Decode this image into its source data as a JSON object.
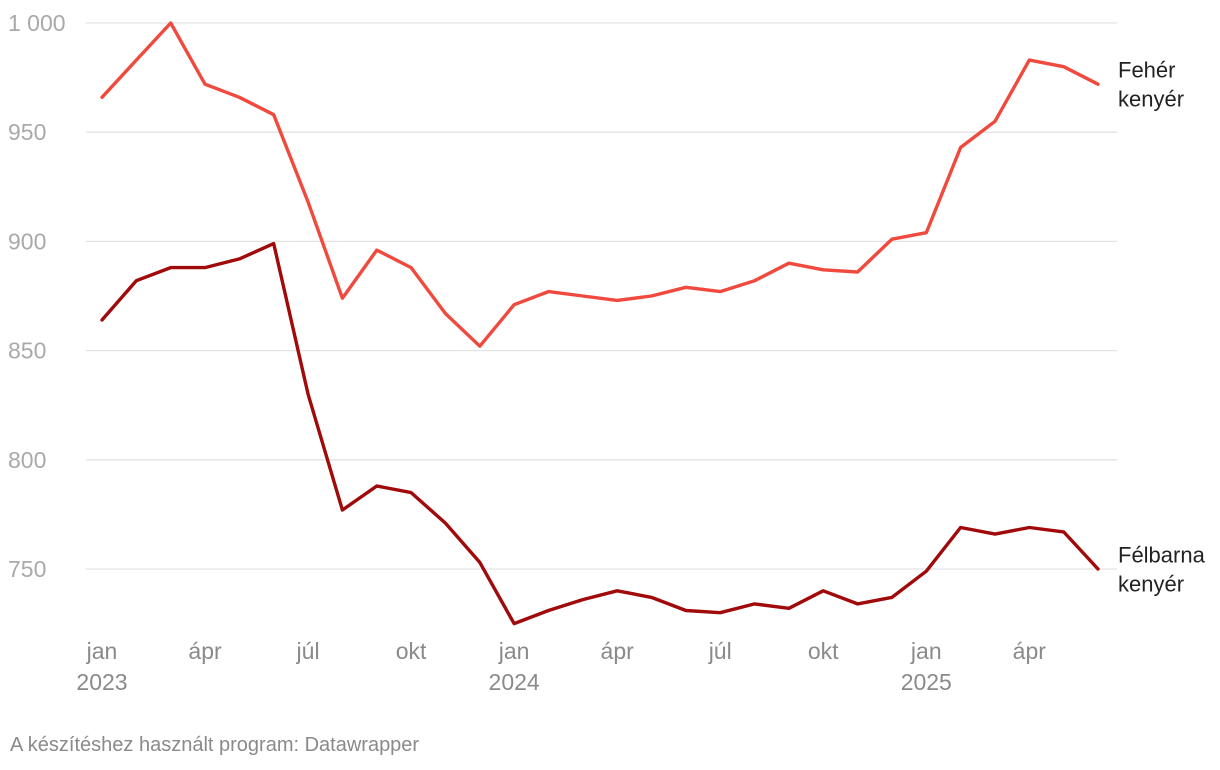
{
  "chart_data": {
    "type": "line",
    "title": "",
    "xlabel": "",
    "ylabel": "",
    "ylim": [
      725,
      1000
    ],
    "yticks": [
      1000,
      950,
      900,
      850,
      800,
      750
    ],
    "ytick_labels": [
      "1 000",
      "950",
      "900",
      "850",
      "800",
      "750"
    ],
    "grid": true,
    "x": [
      "2023-01",
      "2023-02",
      "2023-03",
      "2023-04",
      "2023-05",
      "2023-06",
      "2023-07",
      "2023-08",
      "2023-09",
      "2023-10",
      "2023-11",
      "2023-12",
      "2024-01",
      "2024-02",
      "2024-03",
      "2024-04",
      "2024-05",
      "2024-06",
      "2024-07",
      "2024-08",
      "2024-09",
      "2024-10",
      "2024-11",
      "2024-12",
      "2025-01",
      "2025-02",
      "2025-03",
      "2025-04",
      "2025-05",
      "2025-06"
    ],
    "xticks": [
      {
        "index": 0,
        "month": "jan",
        "year": "2023"
      },
      {
        "index": 3,
        "month": "ápr",
        "year": ""
      },
      {
        "index": 6,
        "month": "júl",
        "year": ""
      },
      {
        "index": 9,
        "month": "okt",
        "year": ""
      },
      {
        "index": 12,
        "month": "jan",
        "year": "2024"
      },
      {
        "index": 15,
        "month": "ápr",
        "year": ""
      },
      {
        "index": 18,
        "month": "júl",
        "year": ""
      },
      {
        "index": 21,
        "month": "okt",
        "year": ""
      },
      {
        "index": 24,
        "month": "jan",
        "year": "2025"
      },
      {
        "index": 27,
        "month": "ápr",
        "year": ""
      }
    ],
    "series": [
      {
        "name": "Fehér kenyér",
        "label_lines": [
          "Fehér",
          "kenyér"
        ],
        "color": "#f04a3e",
        "values": [
          966,
          983,
          1000,
          972,
          966,
          958,
          918,
          874,
          896,
          888,
          867,
          852,
          871,
          877,
          875,
          873,
          875,
          879,
          877,
          882,
          890,
          887,
          886,
          901,
          904,
          943,
          955,
          983,
          980,
          972
        ]
      },
      {
        "name": "Félbarna kenyér",
        "label_lines": [
          "Félbarna",
          "kenyér"
        ],
        "color": "#a00a0a",
        "values": [
          864,
          882,
          888,
          888,
          892,
          899,
          830,
          777,
          788,
          785,
          771,
          753,
          725,
          731,
          736,
          740,
          737,
          731,
          730,
          734,
          732,
          740,
          734,
          737,
          749,
          769,
          766,
          769,
          767,
          750
        ]
      }
    ]
  },
  "footer": {
    "credit": "A készítéshez használt program: Datawrapper"
  }
}
